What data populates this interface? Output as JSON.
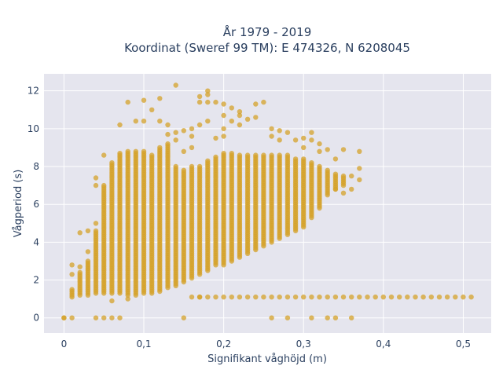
{
  "chart_data": {
    "type": "scatter",
    "title_line1": "År 1979 - 2019",
    "title_line2": "Koordinat (Sweref 99 TM): E 474326, N 6208045",
    "xlabel": "Signifikant våghöjd (m)",
    "ylabel": "Vågperiod (s)",
    "xlim": [
      -0.025,
      0.535
    ],
    "ylim": [
      -0.8,
      12.9
    ],
    "xticks": [
      0,
      0.1,
      0.2,
      0.3,
      0.4,
      0.5
    ],
    "xtick_labels": [
      "0",
      "0,1",
      "0,2",
      "0,3",
      "0,4",
      "0,5"
    ],
    "yticks": [
      0,
      2,
      4,
      6,
      8,
      10,
      12
    ],
    "ytick_labels": [
      "0",
      "2",
      "4",
      "6",
      "8",
      "10",
      "12"
    ],
    "grid": true,
    "marker_color": "#d4a22a",
    "plot_bg": "#e5e5ee",
    "columns": [
      {
        "x": 0.0,
        "ymin": 0,
        "ymax": 0
      },
      {
        "x": 0.01,
        "ymin": 1.1,
        "ymax": 1.5
      },
      {
        "x": 0.02,
        "ymin": 1.2,
        "ymax": 2.4
      },
      {
        "x": 0.03,
        "ymin": 1.2,
        "ymax": 3.0
      },
      {
        "x": 0.04,
        "ymin": 1.3,
        "ymax": 4.6
      },
      {
        "x": 0.05,
        "ymin": 1.3,
        "ymax": 7.0
      },
      {
        "x": 0.06,
        "ymin": 1.3,
        "ymax": 8.2
      },
      {
        "x": 0.07,
        "ymin": 1.3,
        "ymax": 8.7
      },
      {
        "x": 0.08,
        "ymin": 1.2,
        "ymax": 8.8
      },
      {
        "x": 0.09,
        "ymin": 1.2,
        "ymax": 8.8
      },
      {
        "x": 0.1,
        "ymin": 1.3,
        "ymax": 8.8
      },
      {
        "x": 0.11,
        "ymin": 1.3,
        "ymax": 8.6
      },
      {
        "x": 0.12,
        "ymin": 1.4,
        "ymax": 9.0
      },
      {
        "x": 0.13,
        "ymin": 1.6,
        "ymax": 9.2
      },
      {
        "x": 0.14,
        "ymin": 1.7,
        "ymax": 8.0
      },
      {
        "x": 0.15,
        "ymin": 1.9,
        "ymax": 7.8
      },
      {
        "x": 0.16,
        "ymin": 2.1,
        "ymax": 8.0
      },
      {
        "x": 0.17,
        "ymin": 2.3,
        "ymax": 8.0
      },
      {
        "x": 0.18,
        "ymin": 2.5,
        "ymax": 8.3
      },
      {
        "x": 0.19,
        "ymin": 2.8,
        "ymax": 8.5
      },
      {
        "x": 0.2,
        "ymin": 2.8,
        "ymax": 8.7
      },
      {
        "x": 0.21,
        "ymin": 3.0,
        "ymax": 8.7
      },
      {
        "x": 0.22,
        "ymin": 3.2,
        "ymax": 8.6
      },
      {
        "x": 0.23,
        "ymin": 3.4,
        "ymax": 8.6
      },
      {
        "x": 0.24,
        "ymin": 3.6,
        "ymax": 8.6
      },
      {
        "x": 0.25,
        "ymin": 3.8,
        "ymax": 8.6
      },
      {
        "x": 0.26,
        "ymin": 4.0,
        "ymax": 8.6
      },
      {
        "x": 0.27,
        "ymin": 4.2,
        "ymax": 8.6
      },
      {
        "x": 0.28,
        "ymin": 4.4,
        "ymax": 8.6
      },
      {
        "x": 0.29,
        "ymin": 4.6,
        "ymax": 8.4
      },
      {
        "x": 0.3,
        "ymin": 4.8,
        "ymax": 8.4
      },
      {
        "x": 0.31,
        "ymin": 5.3,
        "ymax": 8.2
      },
      {
        "x": 0.32,
        "ymin": 5.8,
        "ymax": 8.0
      },
      {
        "x": 0.33,
        "ymin": 6.5,
        "ymax": 7.8
      },
      {
        "x": 0.34,
        "ymin": 6.8,
        "ymax": 7.6
      },
      {
        "x": 0.35,
        "ymin": 7.0,
        "ymax": 7.5
      }
    ],
    "baseline_band": {
      "y": 1.1,
      "x_from": 0.16,
      "x_to": 0.51,
      "x_step": 0.01
    },
    "scatter_points": [
      [
        0.0,
        0
      ],
      [
        0.01,
        0
      ],
      [
        0.04,
        0
      ],
      [
        0.05,
        0
      ],
      [
        0.06,
        0
      ],
      [
        0.07,
        0
      ],
      [
        0.15,
        0
      ],
      [
        0.26,
        0
      ],
      [
        0.28,
        0
      ],
      [
        0.31,
        0
      ],
      [
        0.33,
        0
      ],
      [
        0.34,
        0
      ],
      [
        0.36,
        0
      ],
      [
        0.01,
        2.3
      ],
      [
        0.01,
        2.8
      ],
      [
        0.02,
        2.7
      ],
      [
        0.02,
        4.5
      ],
      [
        0.03,
        3.5
      ],
      [
        0.03,
        4.6
      ],
      [
        0.04,
        5.0
      ],
      [
        0.04,
        7.0
      ],
      [
        0.04,
        7.4
      ],
      [
        0.05,
        8.6
      ],
      [
        0.07,
        10.2
      ],
      [
        0.08,
        11.4
      ],
      [
        0.09,
        10.4
      ],
      [
        0.1,
        10.4
      ],
      [
        0.1,
        11.5
      ],
      [
        0.11,
        11.0
      ],
      [
        0.12,
        11.6
      ],
      [
        0.12,
        10.4
      ],
      [
        0.13,
        10.2
      ],
      [
        0.14,
        9.4
      ],
      [
        0.14,
        9.8
      ],
      [
        0.15,
        9.9
      ],
      [
        0.14,
        12.3
      ],
      [
        0.16,
        10.0
      ],
      [
        0.16,
        9.6
      ],
      [
        0.17,
        10.2
      ],
      [
        0.17,
        11.7
      ],
      [
        0.17,
        11.4
      ],
      [
        0.18,
        12.0
      ],
      [
        0.18,
        11.4
      ],
      [
        0.18,
        11.8
      ],
      [
        0.18,
        10.4
      ],
      [
        0.19,
        11.4
      ],
      [
        0.19,
        9.5
      ],
      [
        0.2,
        11.3
      ],
      [
        0.2,
        10.7
      ],
      [
        0.2,
        10.0
      ],
      [
        0.2,
        9.6
      ],
      [
        0.21,
        11.1
      ],
      [
        0.21,
        10.4
      ],
      [
        0.22,
        10.7
      ],
      [
        0.22,
        10.9
      ],
      [
        0.22,
        10.2
      ],
      [
        0.23,
        10.5
      ],
      [
        0.24,
        10.6
      ],
      [
        0.24,
        11.3
      ],
      [
        0.25,
        11.4
      ],
      [
        0.26,
        10.0
      ],
      [
        0.26,
        9.6
      ],
      [
        0.27,
        9.4
      ],
      [
        0.27,
        9.9
      ],
      [
        0.28,
        9.8
      ],
      [
        0.29,
        9.4
      ],
      [
        0.3,
        9.5
      ],
      [
        0.3,
        9.0
      ],
      [
        0.31,
        9.4
      ],
      [
        0.31,
        9.8
      ],
      [
        0.32,
        9.2
      ],
      [
        0.32,
        8.8
      ],
      [
        0.33,
        8.9
      ],
      [
        0.34,
        8.4
      ],
      [
        0.34,
        6.8
      ],
      [
        0.35,
        8.9
      ],
      [
        0.35,
        6.6
      ],
      [
        0.36,
        7.5
      ],
      [
        0.36,
        6.8
      ],
      [
        0.37,
        7.3
      ],
      [
        0.37,
        8.8
      ],
      [
        0.37,
        7.9
      ],
      [
        0.15,
        8.8
      ],
      [
        0.16,
        9.0
      ],
      [
        0.13,
        9.7
      ],
      [
        0.06,
        0.9
      ],
      [
        0.08,
        1.0
      ],
      [
        0.17,
        1.1
      ]
    ]
  }
}
